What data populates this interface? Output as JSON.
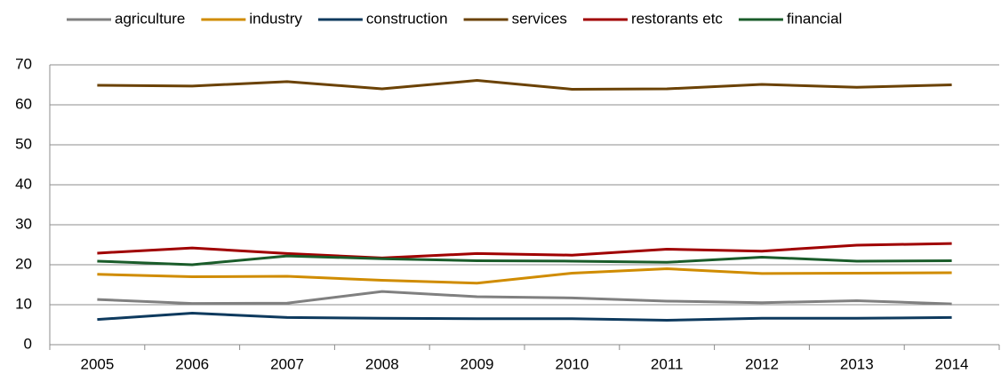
{
  "chart_data": {
    "type": "line",
    "categories": [
      "2005",
      "2006",
      "2007",
      "2008",
      "2009",
      "2010",
      "2011",
      "2012",
      "2013",
      "2014"
    ],
    "series": [
      {
        "name": "agriculture",
        "color": "#808080",
        "values": [
          11.3,
          10.3,
          10.4,
          13.3,
          12.0,
          11.7,
          10.9,
          10.5,
          11.0,
          10.2
        ]
      },
      {
        "name": "industry",
        "color": "#d08c00",
        "values": [
          17.6,
          17.0,
          17.1,
          16.1,
          15.4,
          17.9,
          19.0,
          17.8,
          17.9,
          18.0
        ]
      },
      {
        "name": "construction",
        "color": "#0e3a5e",
        "values": [
          6.3,
          7.9,
          6.8,
          6.6,
          6.5,
          6.5,
          6.1,
          6.6,
          6.6,
          6.8
        ]
      },
      {
        "name": "services",
        "color": "#6b4205",
        "values": [
          64.9,
          64.7,
          65.8,
          64.0,
          66.1,
          63.9,
          64.0,
          65.1,
          64.4,
          65.0
        ]
      },
      {
        "name": "restorants etc",
        "color": "#a00000",
        "values": [
          22.9,
          24.2,
          22.8,
          21.7,
          22.8,
          22.4,
          23.9,
          23.4,
          24.9,
          25.3
        ]
      },
      {
        "name": "financial",
        "color": "#1a5c2a",
        "values": [
          20.9,
          20.0,
          22.2,
          21.5,
          21.0,
          20.9,
          20.6,
          21.9,
          20.9,
          21.0
        ]
      }
    ],
    "ylim": [
      0,
      70
    ],
    "yticks": [
      0,
      10,
      20,
      30,
      40,
      50,
      60,
      70
    ],
    "grid": true,
    "legend": "top"
  }
}
